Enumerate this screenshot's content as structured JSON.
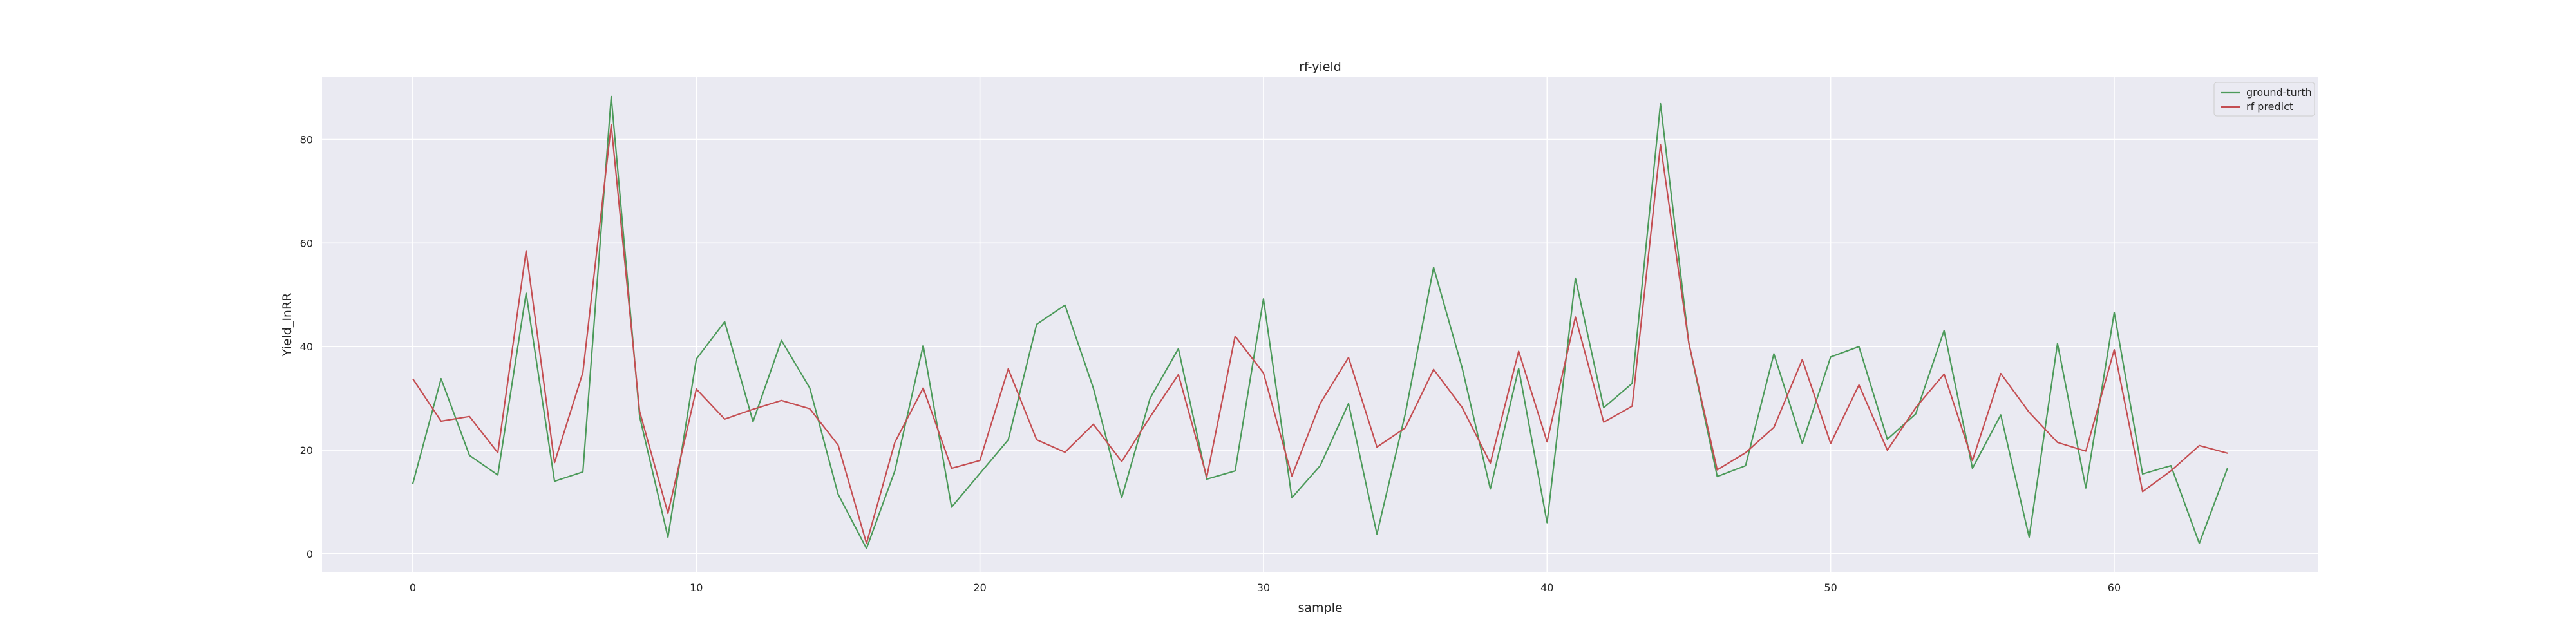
{
  "chart_data": {
    "type": "line",
    "title": "rf-yield",
    "xlabel": "sample",
    "ylabel": "Yield_InRR",
    "xlim": [
      -3.2,
      67.2
    ],
    "ylim": [
      -3.5,
      92
    ],
    "x_ticks": [
      0,
      10,
      20,
      30,
      40,
      50,
      60
    ],
    "y_ticks": [
      0,
      20,
      40,
      60,
      80
    ],
    "grid": true,
    "legend_position": "upper-right",
    "x": [
      0,
      1,
      2,
      3,
      4,
      5,
      6,
      7,
      8,
      9,
      10,
      11,
      12,
      13,
      14,
      15,
      16,
      17,
      18,
      19,
      20,
      21,
      22,
      23,
      24,
      25,
      26,
      27,
      28,
      29,
      30,
      31,
      32,
      33,
      34,
      35,
      36,
      37,
      38,
      39,
      40,
      41,
      42,
      43,
      44,
      45,
      46,
      47,
      48,
      49,
      50,
      51,
      52,
      53,
      54,
      55,
      56,
      57,
      58,
      59,
      60,
      61,
      62,
      63,
      64
    ],
    "series": [
      {
        "name": "ground-turth",
        "color": "#4c9a5a",
        "values": [
          13.5,
          33.8,
          19.0,
          15.2,
          50.3,
          14.0,
          15.8,
          88.3,
          26.5,
          3.2,
          37.6,
          44.8,
          25.5,
          41.2,
          32.0,
          11.5,
          1.0,
          16.0,
          40.2,
          9.0,
          15.5,
          22.0,
          44.3,
          48.0,
          32.0,
          10.8,
          30.0,
          39.6,
          14.4,
          16.0,
          49.2,
          10.8,
          17.0,
          29.0,
          3.8,
          27.0,
          55.3,
          36.0,
          12.5,
          35.8,
          6.0,
          53.2,
          28.2,
          32.9,
          86.9,
          40.7,
          14.9,
          17.0,
          38.6,
          21.3,
          38.0,
          40.0,
          22.1,
          27.0,
          43.1,
          16.5,
          26.8,
          3.2,
          40.6,
          12.7,
          46.6,
          15.4,
          17.0,
          2.0,
          16.6
        ]
      },
      {
        "name": "rf predict",
        "color": "#c44e52",
        "values": [
          33.8,
          25.6,
          26.5,
          19.5,
          58.5,
          17.6,
          35.0,
          82.8,
          27.5,
          7.8,
          31.8,
          26.0,
          27.9,
          29.6,
          28.0,
          21.0,
          2.0,
          21.5,
          32.0,
          16.5,
          18.0,
          35.7,
          22.0,
          19.6,
          25.0,
          17.8,
          26.4,
          34.6,
          14.8,
          42.0,
          34.9,
          15.0,
          29.0,
          37.9,
          20.6,
          24.3,
          35.6,
          28.3,
          17.5,
          39.1,
          21.6,
          45.7,
          25.4,
          28.5,
          79.0,
          40.7,
          16.2,
          19.5,
          24.4,
          37.5,
          21.3,
          32.6,
          20.0,
          28.2,
          34.7,
          18.0,
          34.8,
          27.3,
          21.5,
          19.8,
          39.4,
          12.0,
          16.0,
          20.9,
          19.4
        ]
      }
    ]
  }
}
